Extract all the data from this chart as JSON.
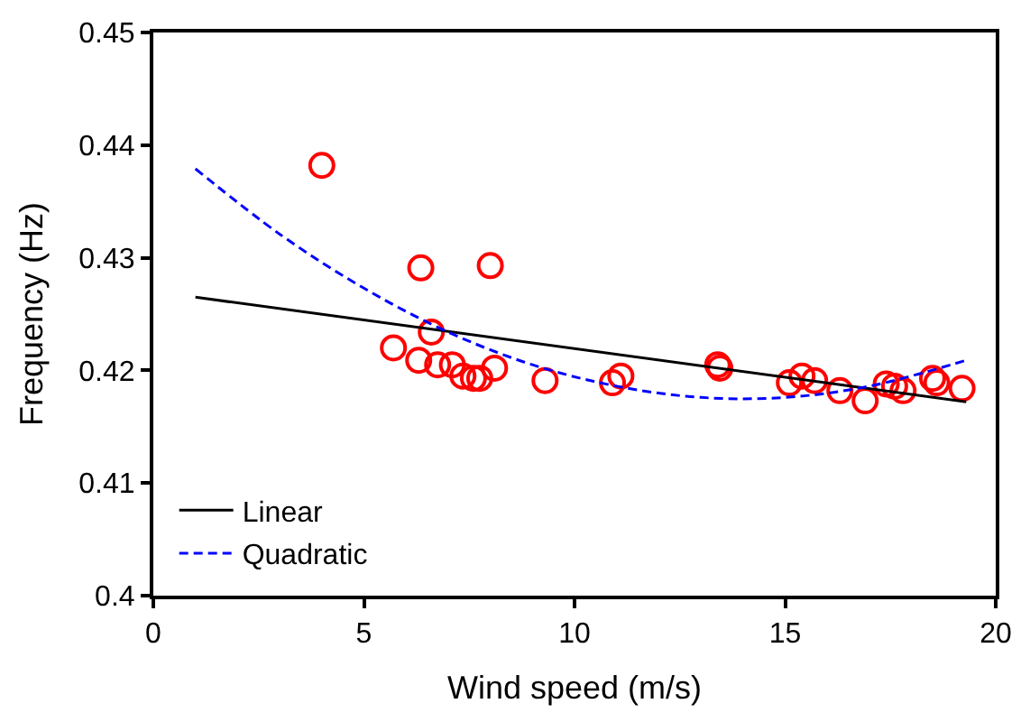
{
  "chart_data": {
    "type": "scatter",
    "xlabel": "Wind speed (m/s)",
    "ylabel": "Frequency (Hz)",
    "xlim": [
      0,
      20
    ],
    "xticks": [
      0,
      5,
      10,
      15,
      20
    ],
    "ylim": [
      0.4,
      0.45
    ],
    "yticks": [
      0.4,
      0.41,
      0.42,
      0.43,
      0.44,
      0.45
    ],
    "grid": false,
    "legend": "bottom left",
    "series": [
      {
        "marker": "circle",
        "color": "#ff0000",
        "x": [
          4.0,
          6.35,
          8.0,
          6.6,
          5.7,
          6.3,
          6.75,
          7.1,
          7.35,
          7.6,
          7.75,
          8.1,
          9.3,
          10.9,
          11.1,
          13.4,
          13.45,
          15.1,
          15.4,
          15.7,
          16.3,
          16.9,
          17.4,
          17.6,
          17.8,
          18.5,
          18.6,
          19.2
        ],
        "values": [
          0.4382,
          0.4291,
          0.4293,
          0.4234,
          0.422,
          0.4209,
          0.4205,
          0.4205,
          0.4195,
          0.4193,
          0.4193,
          0.4202,
          0.4191,
          0.4189,
          0.4195,
          0.4205,
          0.4202,
          0.4189,
          0.4195,
          0.4191,
          0.4182,
          0.4173,
          0.4188,
          0.4186,
          0.4182,
          0.4193,
          0.4189,
          0.4184
        ]
      },
      {
        "type": "line",
        "name": "Linear",
        "color": "#000000",
        "line_style": "solid",
        "x": [
          1,
          19.3
        ],
        "values": [
          0.4265,
          0.4172
        ]
      },
      {
        "type": "line",
        "name": "Quadratic",
        "color": "#0000ff",
        "line_style": "dashed",
        "x": [
          1,
          3,
          5,
          7,
          9,
          11,
          13,
          15,
          17,
          19.3
        ],
        "values": [
          0.4379,
          0.4321,
          0.4273,
          0.4234,
          0.4205,
          0.4186,
          0.4176,
          0.4176,
          0.4186,
          0.4209
        ]
      }
    ]
  }
}
